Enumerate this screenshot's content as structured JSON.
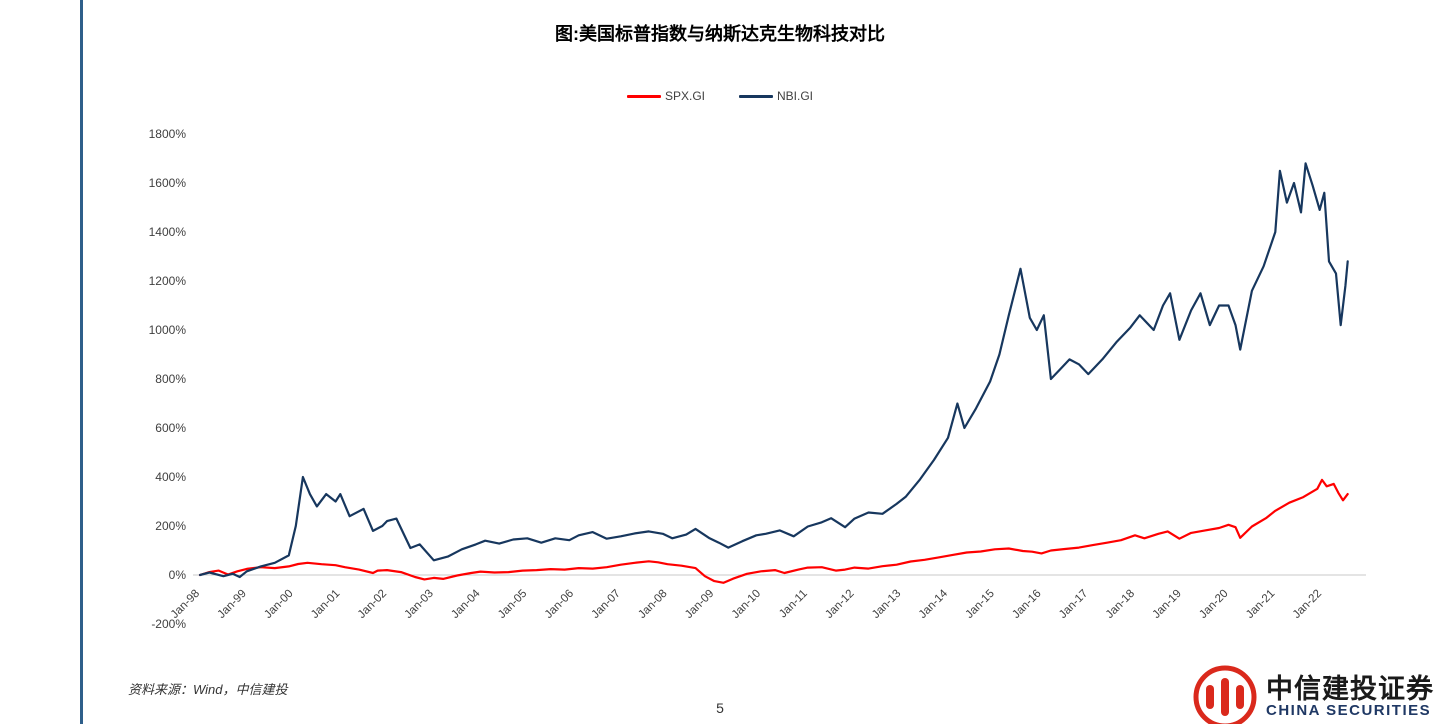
{
  "page": {
    "source_note": "资料来源：Wind，中信建投",
    "page_number": "5",
    "logo": {
      "name_cn": "中信建投证券",
      "name_en": "CHINA SECURITIES"
    }
  },
  "chart_data": {
    "type": "line",
    "title": "图:美国标普指数与纳斯达克生物科技对比",
    "legend_position": "top",
    "grid": false,
    "xlim": [
      1998,
      2022.6
    ],
    "ylim": [
      -200,
      1800
    ],
    "y_ticks": [
      1800,
      1600,
      1400,
      1200,
      1000,
      800,
      600,
      400,
      200,
      0,
      -200
    ],
    "y_tick_suffix": "%",
    "x_tick_labels": [
      "Jan-98",
      "Jan-99",
      "Jan-00",
      "Jan-01",
      "Jan-02",
      "Jan-03",
      "Jan-04",
      "Jan-05",
      "Jan-06",
      "Jan-07",
      "Jan-08",
      "Jan-09",
      "Jan-10",
      "Jan-11",
      "Jan-12",
      "Jan-13",
      "Jan-14",
      "Jan-15",
      "Jan-16",
      "Jan-17",
      "Jan-18",
      "Jan-19",
      "Jan-20",
      "Jan-21",
      "Jan-22"
    ],
    "series": [
      {
        "name": "SPX.GI",
        "color": "#ff0000",
        "x": [
          1998.0,
          1998.2,
          1998.4,
          1998.6,
          1998.8,
          1999.0,
          1999.3,
          1999.6,
          1999.9,
          2000.1,
          2000.3,
          2000.6,
          2000.9,
          2001.1,
          2001.4,
          2001.7,
          2001.8,
          2002.0,
          2002.3,
          2002.6,
          2002.8,
          2003.0,
          2003.2,
          2003.5,
          2003.8,
          2004.0,
          2004.3,
          2004.6,
          2004.9,
          2005.2,
          2005.5,
          2005.8,
          2006.1,
          2006.4,
          2006.7,
          2007.0,
          2007.3,
          2007.6,
          2007.8,
          2008.0,
          2008.3,
          2008.6,
          2008.8,
          2009.0,
          2009.2,
          2009.4,
          2009.7,
          2010.0,
          2010.3,
          2010.5,
          2010.8,
          2011.0,
          2011.3,
          2011.6,
          2011.8,
          2012.0,
          2012.3,
          2012.6,
          2012.9,
          2013.2,
          2013.5,
          2013.8,
          2014.1,
          2014.4,
          2014.7,
          2015.0,
          2015.3,
          2015.6,
          2015.8,
          2016.0,
          2016.2,
          2016.5,
          2016.8,
          2017.1,
          2017.4,
          2017.7,
          2018.0,
          2018.2,
          2018.5,
          2018.7,
          2018.95,
          2019.2,
          2019.5,
          2019.8,
          2020.0,
          2020.15,
          2020.25,
          2020.5,
          2020.8,
          2021.0,
          2021.3,
          2021.6,
          2021.9,
          2022.0,
          2022.1,
          2022.25,
          2022.35,
          2022.45,
          2022.55
        ],
        "values": [
          0,
          12,
          18,
          2,
          15,
          25,
          32,
          28,
          35,
          45,
          50,
          44,
          40,
          32,
          22,
          8,
          18,
          20,
          12,
          -8,
          -18,
          -12,
          -16,
          -2,
          8,
          14,
          10,
          12,
          18,
          20,
          24,
          22,
          28,
          26,
          32,
          42,
          50,
          56,
          52,
          44,
          38,
          28,
          -5,
          -25,
          -32,
          -15,
          5,
          15,
          20,
          8,
          22,
          30,
          32,
          18,
          22,
          30,
          26,
          36,
          42,
          55,
          62,
          72,
          82,
          92,
          96,
          105,
          108,
          98,
          95,
          88,
          100,
          106,
          112,
          122,
          132,
          142,
          162,
          150,
          168,
          178,
          148,
          172,
          182,
          192,
          205,
          195,
          152,
          198,
          232,
          262,
          295,
          318,
          352,
          388,
          362,
          372,
          335,
          305,
          330
        ]
      },
      {
        "name": "NBI.GI",
        "color": "#17375e",
        "x": [
          1998.0,
          1998.2,
          1998.5,
          1998.7,
          1998.85,
          1999.0,
          1999.3,
          1999.6,
          1999.9,
          2000.05,
          2000.2,
          2000.35,
          2000.5,
          2000.7,
          2000.9,
          2001.0,
          2001.2,
          2001.5,
          2001.7,
          2001.9,
          2002.0,
          2002.2,
          2002.5,
          2002.7,
          2003.0,
          2003.3,
          2003.6,
          2003.9,
          2004.1,
          2004.4,
          2004.7,
          2005.0,
          2005.3,
          2005.6,
          2005.9,
          2006.1,
          2006.4,
          2006.7,
          2007.0,
          2007.3,
          2007.6,
          2007.9,
          2008.1,
          2008.4,
          2008.6,
          2008.9,
          2009.1,
          2009.3,
          2009.6,
          2009.9,
          2010.1,
          2010.4,
          2010.7,
          2011.0,
          2011.3,
          2011.5,
          2011.8,
          2012.0,
          2012.3,
          2012.6,
          2012.9,
          2013.1,
          2013.4,
          2013.7,
          2014.0,
          2014.2,
          2014.35,
          2014.6,
          2014.9,
          2015.1,
          2015.3,
          2015.55,
          2015.75,
          2015.9,
          2016.05,
          2016.2,
          2016.4,
          2016.6,
          2016.8,
          2017.0,
          2017.3,
          2017.6,
          2017.9,
          2018.1,
          2018.4,
          2018.6,
          2018.75,
          2018.95,
          2019.2,
          2019.4,
          2019.6,
          2019.8,
          2020.0,
          2020.15,
          2020.25,
          2020.5,
          2020.75,
          2021.0,
          2021.1,
          2021.25,
          2021.4,
          2021.55,
          2021.65,
          2021.8,
          2021.95,
          2022.05,
          2022.15,
          2022.3,
          2022.4,
          2022.5,
          2022.55
        ],
        "values": [
          0,
          10,
          -5,
          5,
          -8,
          15,
          35,
          50,
          80,
          200,
          400,
          330,
          280,
          330,
          300,
          330,
          240,
          270,
          180,
          200,
          220,
          230,
          110,
          125,
          60,
          75,
          105,
          125,
          140,
          128,
          145,
          150,
          132,
          150,
          142,
          162,
          175,
          148,
          158,
          170,
          178,
          168,
          150,
          165,
          188,
          150,
          132,
          112,
          138,
          162,
          168,
          182,
          158,
          198,
          215,
          232,
          195,
          230,
          255,
          250,
          290,
          320,
          390,
          470,
          560,
          700,
          600,
          680,
          790,
          900,
          1060,
          1250,
          1050,
          1000,
          1060,
          800,
          840,
          880,
          860,
          820,
          880,
          950,
          1010,
          1060,
          1000,
          1100,
          1150,
          960,
          1080,
          1150,
          1020,
          1100,
          1100,
          1020,
          920,
          1160,
          1260,
          1400,
          1650,
          1520,
          1600,
          1480,
          1680,
          1590,
          1490,
          1560,
          1280,
          1230,
          1020,
          1180,
          1280
        ]
      }
    ]
  }
}
